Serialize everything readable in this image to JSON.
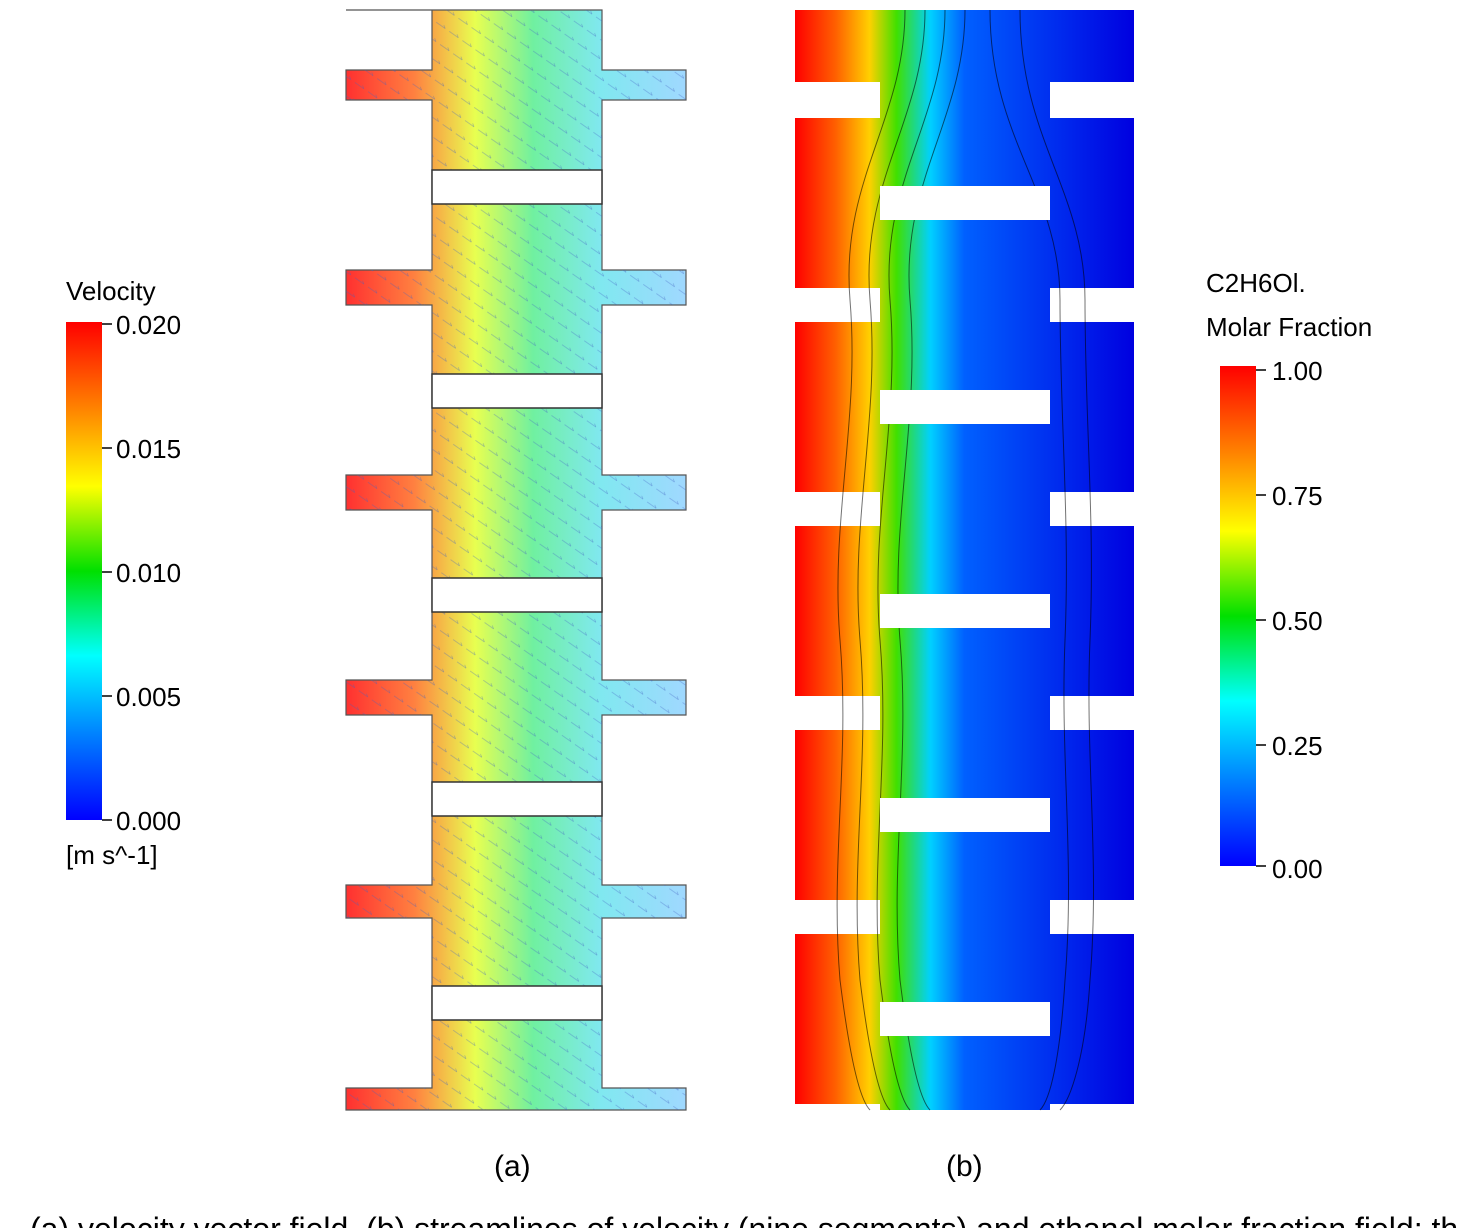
{
  "legend_a": {
    "title": "Velocity",
    "ticks": [
      "0.020",
      "0.015",
      "0.010",
      "0.005",
      "0.000"
    ],
    "unit": "[m s^-1]",
    "colormap": [
      "#ff0000",
      "#ff7f00",
      "#ffff00",
      "#00e000",
      "#00ffff",
      "#0080ff",
      "#0000ff"
    ]
  },
  "legend_b": {
    "title_line1": "C2H6Ol.",
    "title_line2": "Molar Fraction",
    "ticks": [
      "1.00",
      "0.75",
      "0.50",
      "0.25",
      "0.00"
    ],
    "colormap": [
      "#ff0000",
      "#ff7f00",
      "#ffff00",
      "#00e000",
      "#00ffff",
      "#0080ff",
      "#0000ff"
    ]
  },
  "panel_labels": {
    "a": "(a)",
    "b": "(b)"
  },
  "caption": "(a) velocity vector field, (b) streamlines of velocity (nine segments) and ethanol molar fraction field; the"
}
